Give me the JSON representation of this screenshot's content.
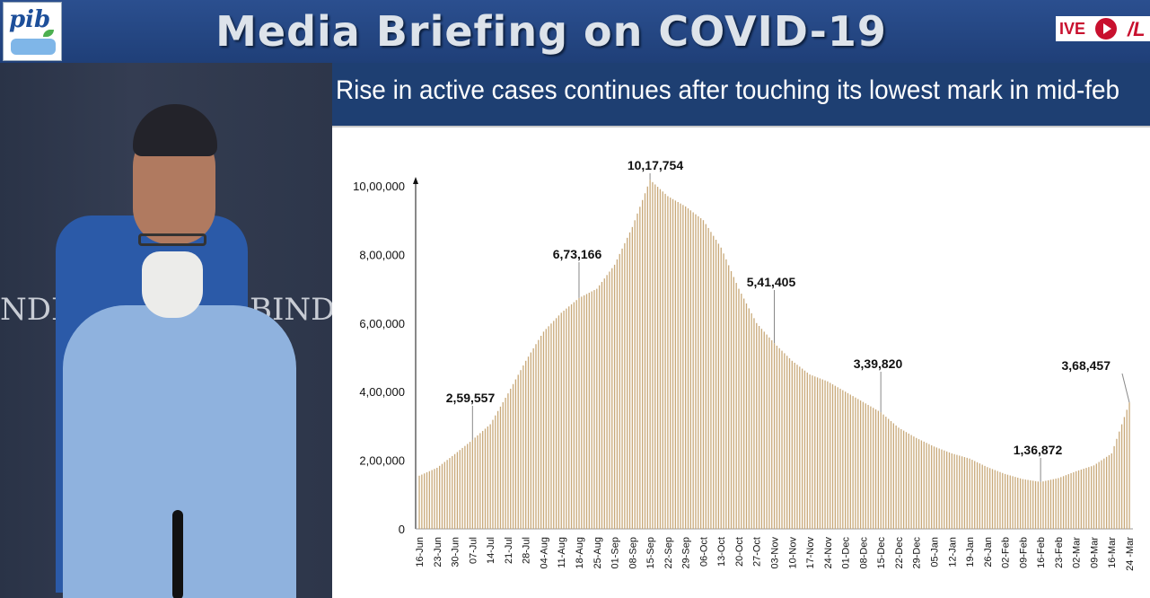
{
  "header": {
    "title": "Media Briefing on COVID-19",
    "live_label": "IVE",
    "logo_text": "pib"
  },
  "speaker": {
    "backdrop_left": "NDI",
    "backdrop_right": "BINDIA"
  },
  "panel": {
    "subtitle": "Rise in active cases continues after touching its lowest mark in mid-feb"
  },
  "colors": {
    "header": "#2b4f8f",
    "subbar": "#1e3f72",
    "bar": "#c8a878"
  },
  "chart_data": {
    "type": "bar",
    "title": "Rise in active cases continues after touching its lowest mark in mid-feb",
    "xlabel": "",
    "ylabel": "",
    "ylim": [
      0,
      1000000
    ],
    "yticks": [
      {
        "value": 0,
        "label": "0"
      },
      {
        "value": 200000,
        "label": "2,00,000"
      },
      {
        "value": 400000,
        "label": "4,00,000"
      },
      {
        "value": 600000,
        "label": "6,00,000"
      },
      {
        "value": 800000,
        "label": "8,00,000"
      },
      {
        "value": 1000000,
        "label": "10,00,000"
      }
    ],
    "x_tick_labels": [
      "16-Jun",
      "23-Jun",
      "30-Jun",
      "07-Jul",
      "14-Jul",
      "21-Jul",
      "28-Jul",
      "04-Aug",
      "11-Aug",
      "18-Aug",
      "25-Aug",
      "01-Sep",
      "08-Sep",
      "15-Sep",
      "22-Sep",
      "29-Sep",
      "06-Oct",
      "13-Oct",
      "20-Oct",
      "27-Oct",
      "03-Nov",
      "10-Nov",
      "17-Nov",
      "24-Nov",
      "01-Dec",
      "08-Dec",
      "15-Dec",
      "22-Dec",
      "29-Dec",
      "05-Jan",
      "12-Jan",
      "19-Jan",
      "26-Jan",
      "02-Feb",
      "09-Feb",
      "16-Feb",
      "23-Feb",
      "02-Mar",
      "09-Mar",
      "16-Mar",
      "24 -Mar"
    ],
    "weekly_values": [
      155000,
      178000,
      218000,
      259557,
      305000,
      395000,
      490000,
      575000,
      630000,
      673166,
      700000,
      770000,
      880000,
      1017754,
      970000,
      940000,
      900000,
      820000,
      700000,
      600000,
      541405,
      490000,
      450000,
      430000,
      400000,
      370000,
      339820,
      295000,
      265000,
      240000,
      220000,
      205000,
      180000,
      160000,
      145000,
      136872,
      148000,
      168000,
      185000,
      220000,
      368457
    ],
    "annotations": [
      {
        "label": "2,59,557",
        "x": "07-Jul",
        "value": 259557
      },
      {
        "label": "6,73,166",
        "x": "18-Aug",
        "value": 673166
      },
      {
        "label": "10,17,754",
        "x": "15-Sep",
        "value": 1017754
      },
      {
        "label": "5,41,405",
        "x": "03-Nov",
        "value": 541405
      },
      {
        "label": "3,39,820",
        "x": "15-Dec",
        "value": 339820
      },
      {
        "label": "1,36,872",
        "x": "16-Feb",
        "value": 136872
      },
      {
        "label": "3,68,457",
        "x": "24 -Mar",
        "value": 368457
      }
    ]
  }
}
